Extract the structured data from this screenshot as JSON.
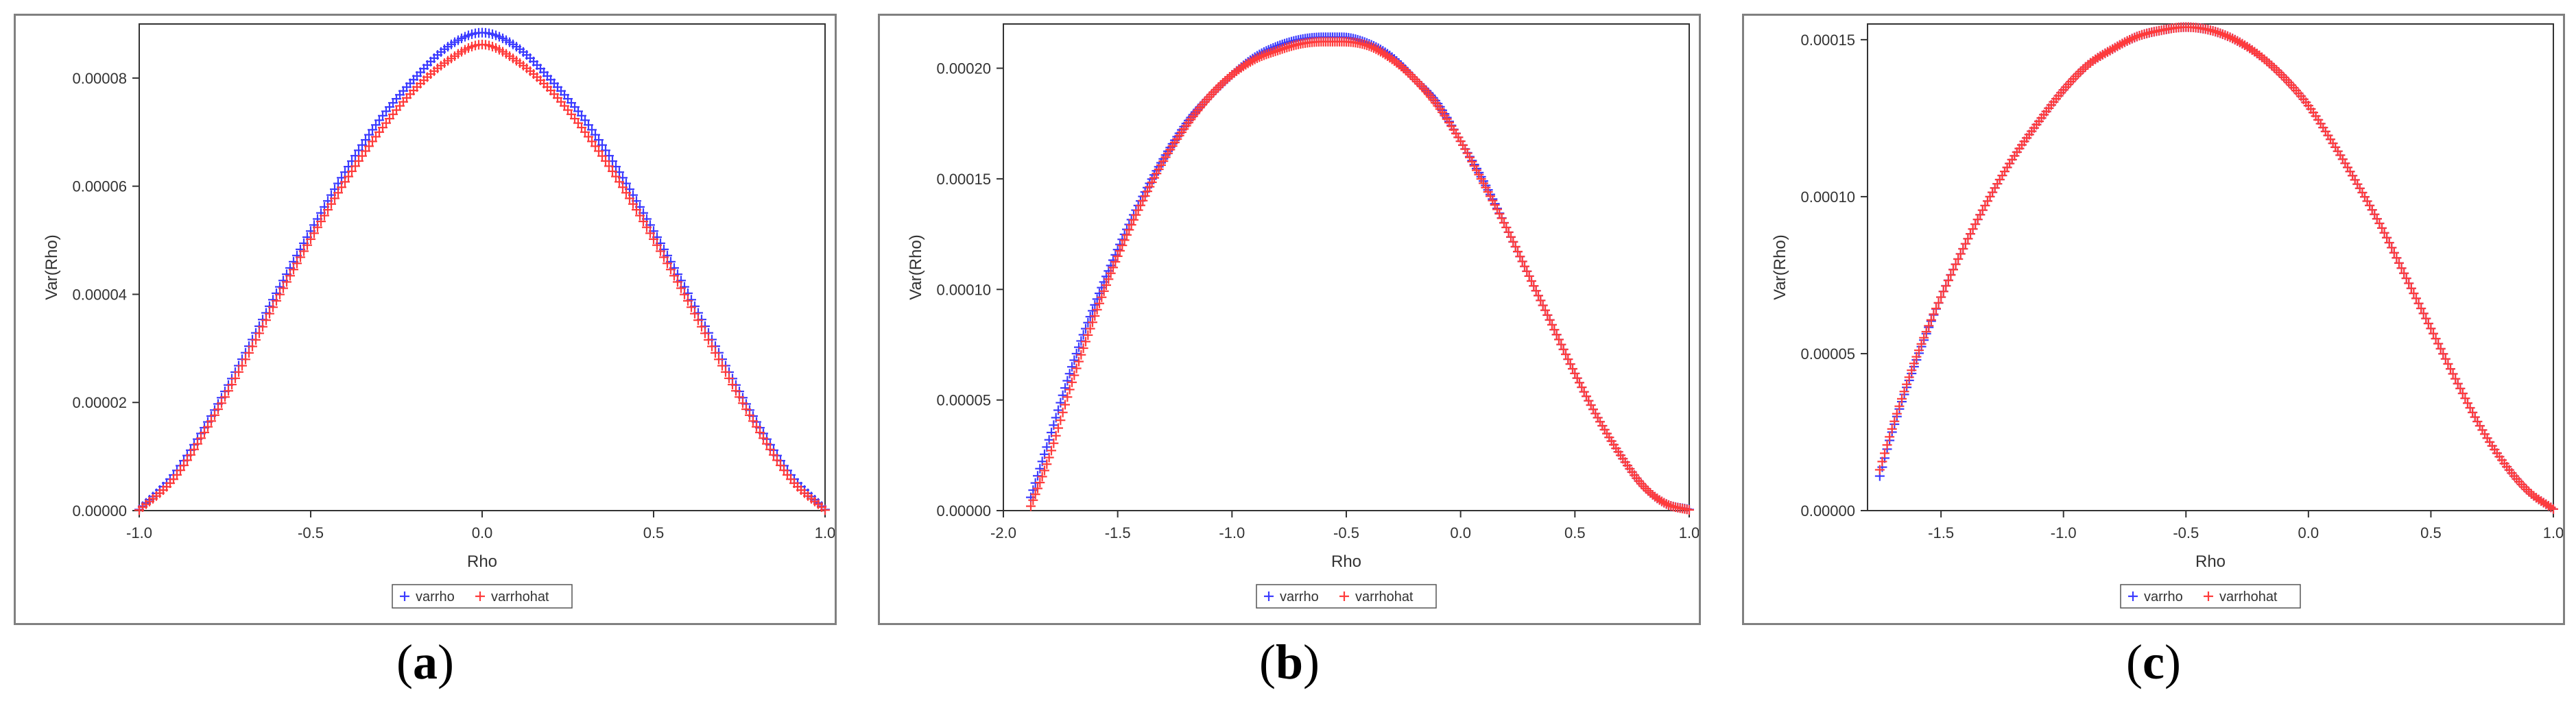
{
  "chart_data": [
    {
      "panel_label": "a",
      "type": "scatter",
      "xlabel": "Rho",
      "ylabel": "Var(Rho)",
      "xlim": [
        -1.0,
        1.0
      ],
      "ylim": [
        0,
        9e-05
      ],
      "xticks": [
        -1.0,
        -0.5,
        0.0,
        0.5,
        1.0
      ],
      "xtick_labels": [
        "-1.0",
        "-0.5",
        "0.0",
        "0.5",
        "1.0"
      ],
      "yticks": [
        0,
        2e-05,
        4e-05,
        6e-05,
        8e-05
      ],
      "ytick_labels": [
        "0.00000",
        "0.00002",
        "0.00004",
        "0.00006",
        "0.00008"
      ],
      "legend": [
        "varrho",
        "varrhohat"
      ],
      "legend_position": "bottom-center",
      "grid": false,
      "series": [
        {
          "name": "varrho",
          "color": "#3b3bff",
          "x": [
            -1.0,
            -0.9,
            -0.8,
            -0.7,
            -0.6,
            -0.5,
            -0.4,
            -0.3,
            -0.2,
            -0.1,
            0.0,
            0.1,
            0.2,
            0.3,
            0.4,
            0.5,
            0.6,
            0.7,
            0.8,
            0.9,
            1.0
          ],
          "y": [
            2e-07,
            6.6e-06,
            1.64e-05,
            2.8e-05,
            4.02e-05,
            5.17e-05,
            6.26e-05,
            7.22e-05,
            7.97e-05,
            8.58e-05,
            8.84e-05,
            8.58e-05,
            7.97e-05,
            7.22e-05,
            6.26e-05,
            5.17e-05,
            4.02e-05,
            2.8e-05,
            1.64e-05,
            6.6e-06,
            2e-07
          ]
        },
        {
          "name": "varrhohat",
          "color": "#ff3b3b",
          "x": [
            -1.0,
            -0.9,
            -0.8,
            -0.7,
            -0.6,
            -0.5,
            -0.4,
            -0.3,
            -0.2,
            -0.1,
            0.0,
            0.1,
            0.2,
            0.3,
            0.4,
            0.5,
            0.6,
            0.7,
            0.8,
            0.9,
            1.0
          ],
          "y": [
            1e-07,
            5.8e-06,
            1.55e-05,
            2.68e-05,
            3.88e-05,
            5.02e-05,
            6.08e-05,
            7e-05,
            7.77e-05,
            8.32e-05,
            8.62e-05,
            8.32e-05,
            7.77e-05,
            7e-05,
            6.08e-05,
            5.02e-05,
            3.88e-05,
            2.68e-05,
            1.55e-05,
            5.8e-06,
            1e-07
          ]
        }
      ]
    },
    {
      "panel_label": "b",
      "type": "scatter",
      "xlabel": "Rho",
      "ylabel": "Var(Rho)",
      "xlim": [
        -2.0,
        1.0
      ],
      "ylim": [
        0,
        0.00022
      ],
      "xticks": [
        -2.0,
        -1.5,
        -1.0,
        -0.5,
        0.0,
        0.5,
        1.0
      ],
      "xtick_labels": [
        "-2.0",
        "-1.5",
        "-1.0",
        "-0.5",
        "0.0",
        "0.5",
        "1.0"
      ],
      "yticks": [
        0,
        5e-05,
        0.0001,
        0.00015,
        0.0002
      ],
      "ytick_labels": [
        "0.00000",
        "0.00005",
        "0.00010",
        "0.00015",
        "0.00020"
      ],
      "legend": [
        "varrho",
        "varrhohat"
      ],
      "legend_position": "bottom-center",
      "grid": false,
      "series": [
        {
          "name": "varrho",
          "color": "#3b3bff",
          "x": [
            -1.88,
            -1.8,
            -1.7,
            -1.6,
            -1.5,
            -1.4,
            -1.3,
            -1.2,
            -1.1,
            -1.0,
            -0.9,
            -0.8,
            -0.7,
            -0.6,
            -0.52,
            -0.4,
            -0.3,
            -0.2,
            -0.1,
            0.0,
            0.1,
            0.2,
            0.3,
            0.4,
            0.5,
            0.6,
            0.7,
            0.8,
            0.9,
            1.0
          ],
          "y": [
            6e-06,
            3.2e-05,
            6.5e-05,
            9.3e-05,
            0.000118,
            0.00014,
            0.000159,
            0.000175,
            0.000187,
            0.000197,
            0.000205,
            0.00021,
            0.000213,
            0.000214,
            0.000214,
            0.000211,
            0.000205,
            0.000195,
            0.000184,
            0.000167,
            0.000149,
            0.000128,
            0.000106,
            8.4e-05,
            6.2e-05,
            4.2e-05,
            2.5e-05,
            1.1e-05,
            3e-06,
            5e-07
          ]
        },
        {
          "name": "varrhohat",
          "color": "#ff3b3b",
          "x": [
            -1.88,
            -1.8,
            -1.7,
            -1.6,
            -1.5,
            -1.4,
            -1.3,
            -1.2,
            -1.1,
            -1.0,
            -0.9,
            -0.8,
            -0.7,
            -0.6,
            -0.52,
            -0.4,
            -0.3,
            -0.2,
            -0.1,
            0.0,
            0.1,
            0.2,
            0.3,
            0.4,
            0.5,
            0.6,
            0.7,
            0.8,
            0.9,
            1.0
          ],
          "y": [
            2e-06,
            2.4e-05,
            5.8e-05,
            8.8e-05,
            0.000115,
            0.000138,
            0.000158,
            0.000174,
            0.000187,
            0.000197,
            0.000204,
            0.000208,
            0.000211,
            0.000212,
            0.000212,
            0.00021,
            0.000204,
            0.000195,
            0.000183,
            0.000167,
            0.000148,
            0.000128,
            0.000106,
            8.4e-05,
            6.2e-05,
            4.2e-05,
            2.5e-05,
            1.1e-05,
            3e-06,
            3e-07
          ]
        }
      ]
    },
    {
      "panel_label": "c",
      "type": "scatter",
      "xlabel": "Rho",
      "ylabel": "Var(Rho)",
      "xlim": [
        -1.8,
        1.0
      ],
      "ylim": [
        0,
        0.000155
      ],
      "xticks": [
        -1.5,
        -1.0,
        -0.5,
        0.0,
        0.5,
        1.0
      ],
      "xtick_labels": [
        "-1.5",
        "-1.0",
        "-0.5",
        "0.0",
        "0.5",
        "1.0"
      ],
      "yticks": [
        0,
        5e-05,
        0.0001,
        0.00015
      ],
      "ytick_labels": [
        "0.00000",
        "0.00005",
        "0.00010",
        "0.00015"
      ],
      "legend": [
        "varrho",
        "varrhohat"
      ],
      "legend_position": "bottom-center",
      "grid": false,
      "series": [
        {
          "name": "varrho",
          "color": "#3b3bff",
          "x": [
            -1.75,
            -1.7,
            -1.6,
            -1.5,
            -1.4,
            -1.3,
            -1.2,
            -1.1,
            -1.0,
            -0.9,
            -0.8,
            -0.7,
            -0.6,
            -0.5,
            -0.4,
            -0.3,
            -0.2,
            -0.1,
            0.0,
            0.1,
            0.2,
            0.3,
            0.4,
            0.5,
            0.6,
            0.7,
            0.8,
            0.9,
            1.0
          ],
          "y": [
            1.1e-05,
            2.5e-05,
            4.8e-05,
            6.8e-05,
            8.5e-05,
            0.0001,
            0.000113,
            0.000124,
            0.000134,
            0.000142,
            0.000147,
            0.000151,
            0.000153,
            0.000154,
            0.000153,
            0.00015,
            0.000145,
            0.000138,
            0.000129,
            0.000117,
            0.000104,
            9e-05,
            7.4e-05,
            5.8e-05,
            4.2e-05,
            2.7e-05,
            1.5e-05,
            6e-06,
            5e-07
          ]
        },
        {
          "name": "varrhohat",
          "color": "#ff3b3b",
          "x": [
            -1.75,
            -1.7,
            -1.6,
            -1.5,
            -1.4,
            -1.3,
            -1.2,
            -1.1,
            -1.0,
            -0.9,
            -0.8,
            -0.7,
            -0.6,
            -0.5,
            -0.4,
            -0.3,
            -0.2,
            -0.1,
            0.0,
            0.1,
            0.2,
            0.3,
            0.4,
            0.5,
            0.6,
            0.7,
            0.8,
            0.9,
            1.0
          ],
          "y": [
            1.3e-05,
            2.6e-05,
            4.9e-05,
            6.8e-05,
            8.5e-05,
            0.0001,
            0.000113,
            0.000124,
            0.000134,
            0.000142,
            0.000147,
            0.000151,
            0.000153,
            0.000154,
            0.000153,
            0.00015,
            0.000145,
            0.000138,
            0.000129,
            0.000117,
            0.000104,
            9e-05,
            7.4e-05,
            5.8e-05,
            4.2e-05,
            2.7e-05,
            1.5e-05,
            6e-06,
            5e-07
          ]
        }
      ]
    }
  ]
}
